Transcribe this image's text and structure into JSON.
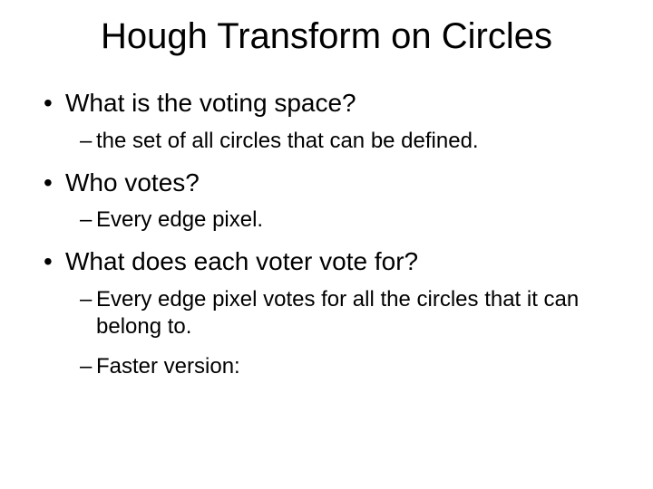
{
  "title": "Hough Transform on Circles",
  "bullets": [
    {
      "level": 1,
      "text": "What is the voting space?"
    },
    {
      "level": 2,
      "text": "the set of all circles that can be defined."
    },
    {
      "level": 1,
      "text": "Who votes?"
    },
    {
      "level": 2,
      "text": "Every edge pixel."
    },
    {
      "level": 1,
      "text": "What does each voter vote for?"
    },
    {
      "level": 2,
      "text": "Every edge pixel votes for all the circles that it can belong to."
    },
    {
      "level": 2,
      "text": "Faster version:"
    }
  ],
  "colors": {
    "background": "#ffffff",
    "text": "#000000"
  },
  "typography": {
    "title_fontsize": 40,
    "l1_fontsize": 28,
    "l2_fontsize": 24,
    "font_family": "Arial"
  }
}
